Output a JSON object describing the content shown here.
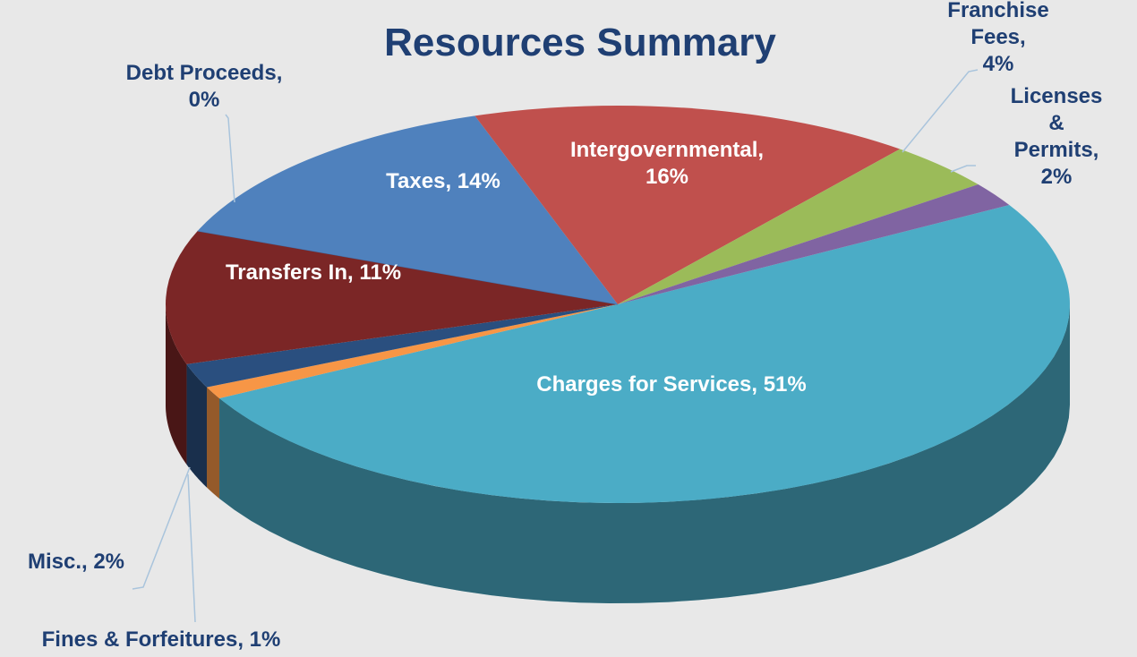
{
  "chart_data": {
    "type": "pie3d",
    "title": "Resources Summary",
    "categories": [
      "Charges for Services, 51%",
      "Fines & Forfeitures, 1%",
      "Misc., 2%",
      "Transfers In, 11%",
      "Debt Proceeds,\n0%",
      "Taxes, 14%",
      "Intergovernmental,\n16%",
      "Franchise Fees,\n4%",
      "Licenses &\nPermits, 2%"
    ],
    "values": [
      51,
      1,
      2,
      11,
      0,
      14,
      16,
      4,
      2
    ],
    "colors": [
      "#4bacc6",
      "#f79646",
      "#2a4f7f",
      "#7b2626",
      "#3f6fa8",
      "#4f81bd",
      "#c0504d",
      "#9bbb59",
      "#8064a2"
    ]
  }
}
